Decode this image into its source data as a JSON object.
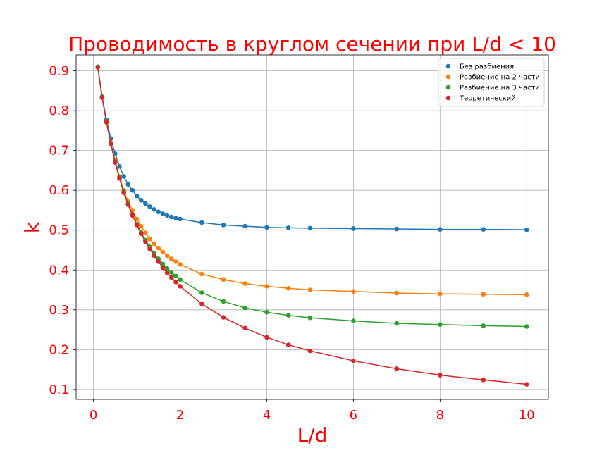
{
  "chart_data": {
    "type": "line",
    "title": "Проводимость в круглом сечении при L/d < 10",
    "xlabel": "L/d",
    "ylabel": "k",
    "xlim": [
      -0.4,
      10.5
    ],
    "ylim": [
      0.075,
      0.94
    ],
    "xticks": [
      0,
      2,
      4,
      6,
      8,
      10
    ],
    "yticks": [
      0.1,
      0.2,
      0.3,
      0.4,
      0.5,
      0.6,
      0.7,
      0.8,
      0.9
    ],
    "grid": true,
    "legend_position": "top-right",
    "series": [
      {
        "name": "Без разбиения",
        "color": "#1f77b4",
        "x": [
          0.1,
          0.2,
          0.3,
          0.4,
          0.5,
          0.6,
          0.7,
          0.8,
          0.9,
          1.0,
          1.1,
          1.2,
          1.3,
          1.4,
          1.5,
          1.6,
          1.7,
          1.8,
          1.9,
          2.0,
          2.5,
          3.0,
          3.5,
          4.0,
          4.5,
          5.0,
          6.0,
          7.0,
          8.0,
          9.0,
          10.0
        ],
        "y": [
          0.91,
          0.835,
          0.777,
          0.73,
          0.692,
          0.66,
          0.635,
          0.615,
          0.6,
          0.586,
          0.575,
          0.567,
          0.559,
          0.552,
          0.546,
          0.541,
          0.537,
          0.533,
          0.53,
          0.528,
          0.519,
          0.513,
          0.51,
          0.507,
          0.506,
          0.505,
          0.504,
          0.503,
          0.502,
          0.502,
          0.501
        ]
      },
      {
        "name": "Разбиение на 2 части",
        "color": "#ff7f0e",
        "x": [
          0.1,
          0.2,
          0.3,
          0.4,
          0.5,
          0.6,
          0.7,
          0.8,
          0.9,
          1.0,
          1.1,
          1.2,
          1.3,
          1.4,
          1.5,
          1.6,
          1.7,
          1.8,
          1.9,
          2.0,
          2.5,
          3.0,
          3.5,
          4.0,
          4.5,
          5.0,
          6.0,
          7.0,
          8.0,
          9.0,
          10.0
        ],
        "y": [
          0.91,
          0.834,
          0.773,
          0.72,
          0.675,
          0.635,
          0.6,
          0.572,
          0.55,
          0.528,
          0.51,
          0.493,
          0.478,
          0.466,
          0.455,
          0.445,
          0.436,
          0.428,
          0.421,
          0.414,
          0.39,
          0.376,
          0.366,
          0.359,
          0.354,
          0.35,
          0.346,
          0.342,
          0.34,
          0.339,
          0.338
        ]
      },
      {
        "name": "Разбиение на 3 части",
        "color": "#2ca02c",
        "x": [
          0.1,
          0.2,
          0.3,
          0.4,
          0.5,
          0.6,
          0.7,
          0.8,
          0.9,
          1.0,
          1.1,
          1.2,
          1.3,
          1.4,
          1.5,
          1.6,
          1.7,
          1.8,
          1.9,
          2.0,
          2.5,
          3.0,
          3.5,
          4.0,
          4.5,
          5.0,
          6.0,
          7.0,
          8.0,
          9.0,
          10.0
        ],
        "y": [
          0.91,
          0.834,
          0.772,
          0.718,
          0.672,
          0.632,
          0.597,
          0.566,
          0.539,
          0.515,
          0.494,
          0.475,
          0.458,
          0.442,
          0.428,
          0.415,
          0.404,
          0.394,
          0.385,
          0.376,
          0.343,
          0.321,
          0.305,
          0.294,
          0.286,
          0.28,
          0.272,
          0.266,
          0.263,
          0.26,
          0.258
        ]
      },
      {
        "name": "Теоретический",
        "color": "#d62728",
        "x": [
          0.1,
          0.2,
          0.3,
          0.4,
          0.5,
          0.6,
          0.7,
          0.8,
          0.9,
          1.0,
          1.1,
          1.2,
          1.3,
          1.4,
          1.5,
          1.6,
          1.7,
          1.8,
          1.9,
          2.0,
          2.5,
          3.0,
          3.5,
          4.0,
          4.5,
          5.0,
          6.0,
          7.0,
          8.0,
          9.0,
          10.0
        ],
        "y": [
          0.909,
          0.833,
          0.771,
          0.717,
          0.67,
          0.63,
          0.594,
          0.564,
          0.537,
          0.513,
          0.491,
          0.471,
          0.453,
          0.436,
          0.421,
          0.406,
          0.393,
          0.381,
          0.37,
          0.359,
          0.315,
          0.281,
          0.254,
          0.231,
          0.212,
          0.197,
          0.172,
          0.152,
          0.136,
          0.124,
          0.113
        ]
      }
    ]
  }
}
